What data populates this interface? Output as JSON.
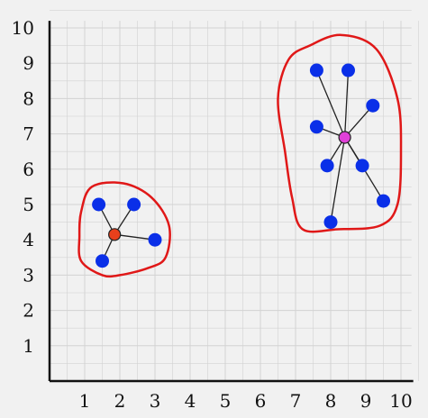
{
  "chart_data": {
    "type": "scatter",
    "title": "",
    "xlabel": "",
    "ylabel": "",
    "xlim": [
      0,
      10
    ],
    "ylim": [
      0,
      10
    ],
    "grid": true,
    "x_ticks": [
      "1",
      "2",
      "3",
      "4",
      "5",
      "6",
      "7",
      "8",
      "9",
      "10"
    ],
    "y_ticks": [
      "1",
      "2",
      "3",
      "4",
      "5",
      "6",
      "7",
      "8",
      "9",
      "10"
    ],
    "clusters": [
      {
        "centroid": {
          "x": 1.85,
          "y": 4.15
        },
        "centroid_color": "#e8401c",
        "points": [
          {
            "x": 1.4,
            "y": 5.0
          },
          {
            "x": 2.4,
            "y": 5.0
          },
          {
            "x": 3.0,
            "y": 4.0
          },
          {
            "x": 1.5,
            "y": 3.4
          }
        ],
        "outline": [
          [
            0.9,
            4.8
          ],
          [
            1.2,
            5.5
          ],
          [
            2.1,
            5.6
          ],
          [
            2.9,
            5.2
          ],
          [
            3.4,
            4.4
          ],
          [
            3.3,
            3.5
          ],
          [
            2.8,
            3.2
          ],
          [
            2.0,
            3.0
          ],
          [
            1.5,
            3.0
          ],
          [
            0.9,
            3.4
          ],
          [
            0.85,
            4.1
          ]
        ]
      },
      {
        "centroid": {
          "x": 8.4,
          "y": 6.9
        },
        "centroid_color": "#e040d8",
        "points": [
          {
            "x": 7.6,
            "y": 8.8
          },
          {
            "x": 8.5,
            "y": 8.8
          },
          {
            "x": 9.2,
            "y": 7.8
          },
          {
            "x": 7.6,
            "y": 7.2
          },
          {
            "x": 7.9,
            "y": 6.1
          },
          {
            "x": 8.9,
            "y": 6.1
          },
          {
            "x": 9.5,
            "y": 5.1
          },
          {
            "x": 8.0,
            "y": 4.5
          }
        ],
        "outline": [
          [
            7.4,
            9.5
          ],
          [
            8.3,
            9.8
          ],
          [
            9.3,
            9.4
          ],
          [
            9.9,
            8.0
          ],
          [
            10.0,
            6.5
          ],
          [
            9.9,
            5.0
          ],
          [
            9.4,
            4.4
          ],
          [
            8.2,
            4.3
          ],
          [
            7.2,
            4.3
          ],
          [
            6.9,
            5.2
          ],
          [
            6.7,
            6.5
          ],
          [
            6.5,
            8.0
          ],
          [
            6.8,
            9.1
          ]
        ]
      }
    ],
    "colors": {
      "point": "#0a2fe8",
      "outline": "#e01818",
      "link": "#222222",
      "grid": "#d2d2d2",
      "axis": "#111111"
    }
  }
}
